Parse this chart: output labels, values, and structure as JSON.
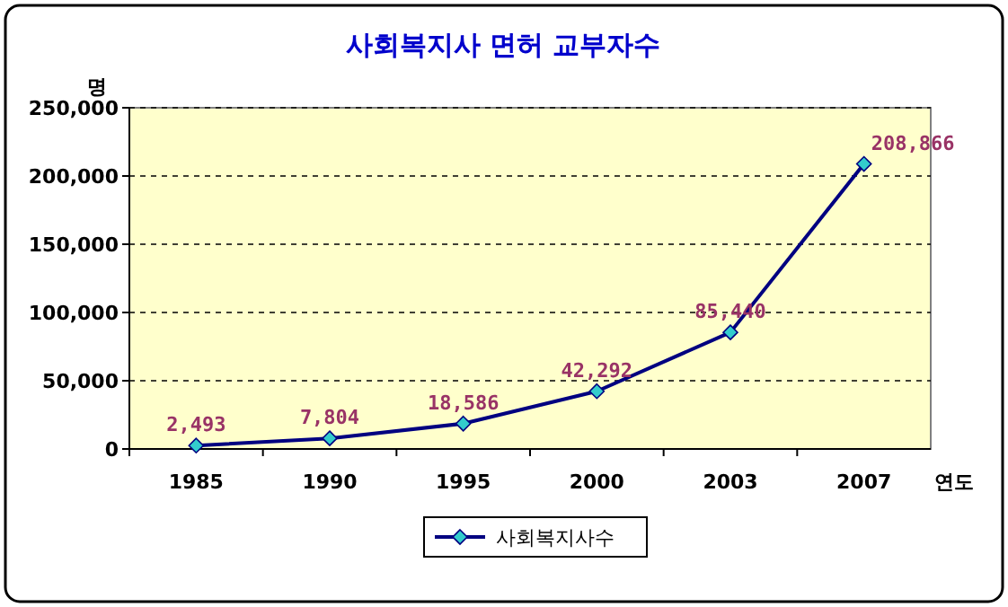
{
  "chart_data": {
    "type": "line",
    "title": "사회복지사 면허 교부자수",
    "ylabel": "명",
    "xlabel": "연도",
    "categories": [
      "1985",
      "1990",
      "1995",
      "2000",
      "2003",
      "2007"
    ],
    "series": [
      {
        "name": "사회복지사수",
        "color": "#000080",
        "values": [
          2493,
          7804,
          18586,
          42292,
          85440,
          208866
        ],
        "value_labels": [
          "2,493",
          "7,804",
          "18,586",
          "42,292",
          "85,440",
          "208,866"
        ]
      }
    ],
    "ylim": [
      0,
      250000
    ],
    "yticks": [
      {
        "value": 0,
        "label": "0"
      },
      {
        "value": 50000,
        "label": "50,000"
      },
      {
        "value": 100000,
        "label": "100,000"
      },
      {
        "value": 150000,
        "label": "150,000"
      },
      {
        "value": 200000,
        "label": "200,000"
      },
      {
        "value": 250000,
        "label": "250,000"
      }
    ],
    "grid": "y",
    "legend": "bottom",
    "marker": "diamond",
    "line_style": "solid"
  }
}
